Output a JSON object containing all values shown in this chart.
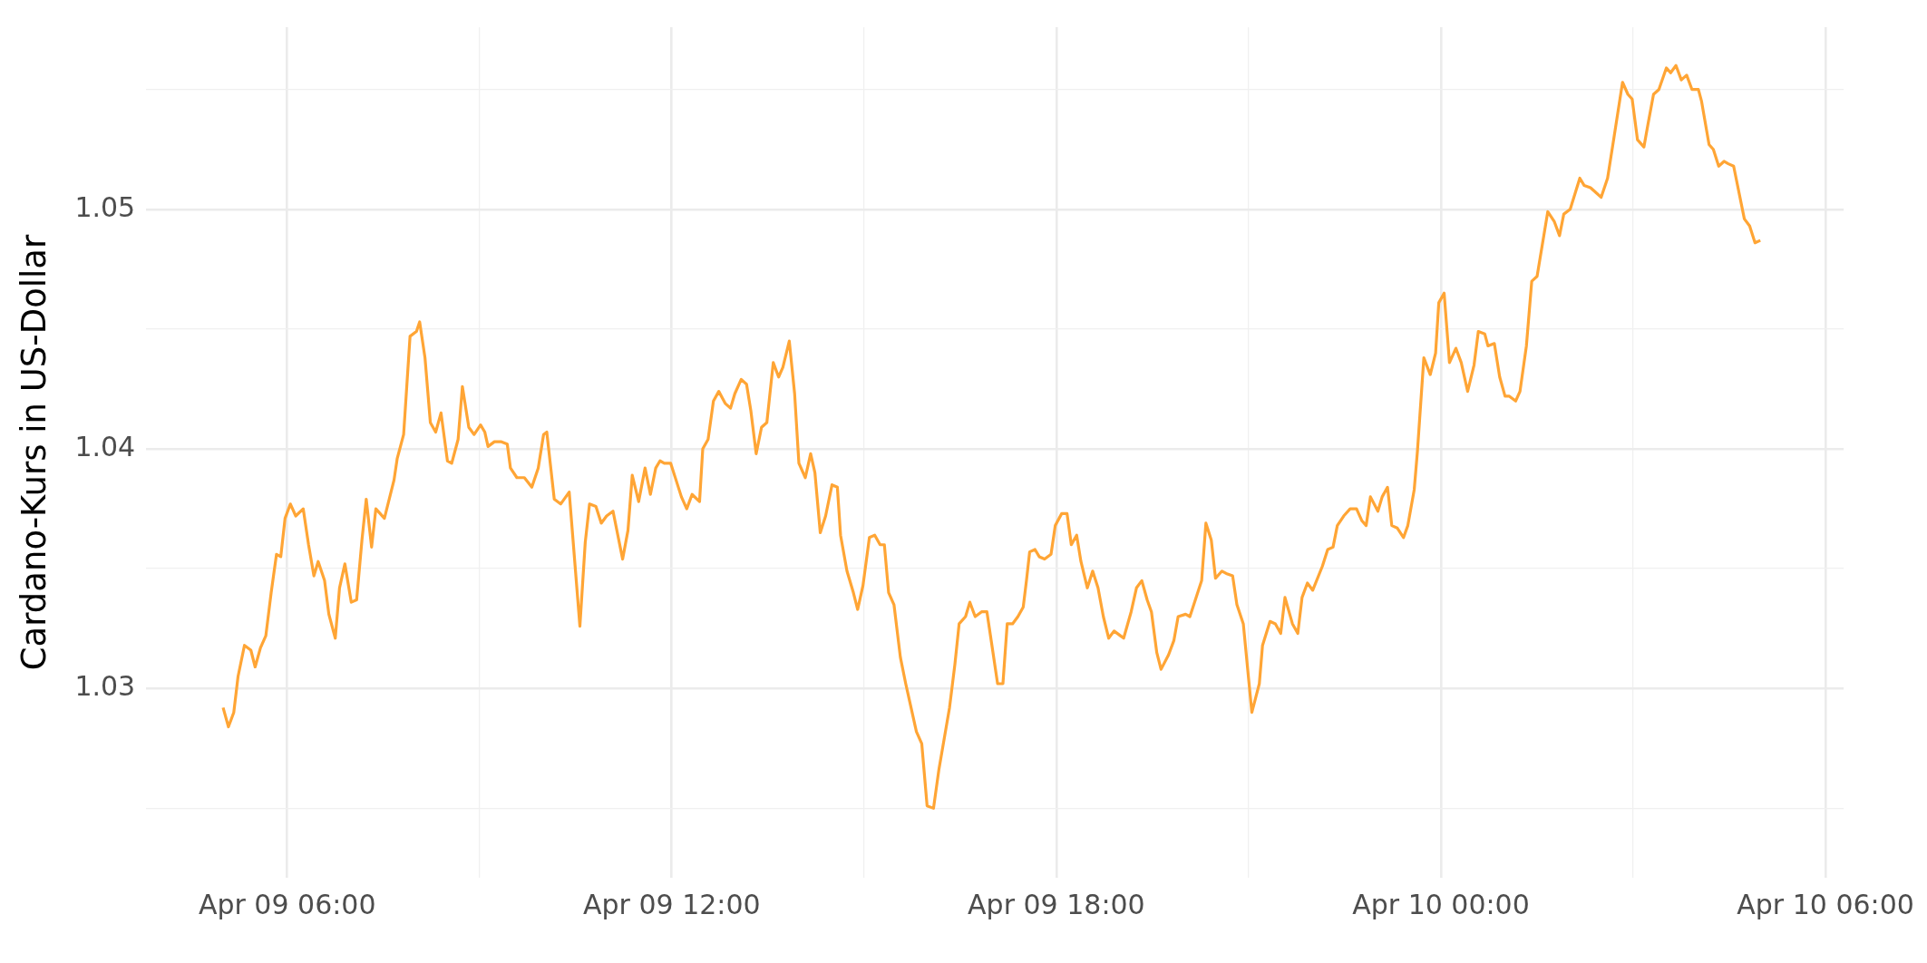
{
  "chart_data": {
    "type": "line",
    "ylabel": "Cardano-Kurs in US-Dollar",
    "color": "#ffa535",
    "grid": true,
    "xlim": [
      "--04-09T03:48",
      "--04-10T06:17"
    ],
    "ylim": [
      1.0221,
      1.0576
    ],
    "xticks": [
      {
        "value": "--04-09T06:00",
        "label": "Apr 09 06:00"
      },
      {
        "value": "--04-09T09:00",
        "label": null
      },
      {
        "value": "--04-09T12:00",
        "label": "Apr 09 12:00"
      },
      {
        "value": "--04-09T15:00",
        "label": null
      },
      {
        "value": "--04-09T18:00",
        "label": "Apr 09 18:00"
      },
      {
        "value": "--04-09T21:00",
        "label": null
      },
      {
        "value": "--04-10T00:00",
        "label": "Apr 10 00:00"
      },
      {
        "value": "--04-10T03:00",
        "label": null
      },
      {
        "value": "--04-10T06:00",
        "label": "Apr 10 06:00"
      }
    ],
    "yticks": [
      {
        "value": 1.025,
        "label": null
      },
      1.03,
      {
        "value": 1.035,
        "label": null
      },
      1.04,
      {
        "value": 1.045,
        "label": null
      },
      1.05,
      {
        "value": 1.055,
        "label": null
      }
    ],
    "x": [
      "--04-09T05:00",
      "--04-09T05:05",
      "--04-09T05:10",
      "--04-09T05:14",
      "--04-09T05:20",
      "--04-09T05:26",
      "--04-09T05:30",
      "--04-09T05:35",
      "--04-09T05:40",
      "--04-09T05:45",
      "--04-09T05:50",
      "--04-09T05:54",
      "--04-09T05:58",
      "--04-09T06:03",
      "--04-09T06:08",
      "--04-09T06:15",
      "--04-09T06:20",
      "--04-09T06:25",
      "--04-09T06:29",
      "--04-09T06:35",
      "--04-09T06:39",
      "--04-09T06:45",
      "--04-09T06:49",
      "--04-09T06:54",
      "--04-09T07:00",
      "--04-09T07:05",
      "--04-09T07:10",
      "--04-09T07:14",
      "--04-09T07:19",
      "--04-09T07:23",
      "--04-09T07:31",
      "--04-09T07:40",
      "--04-09T07:43",
      "--04-09T07:49",
      "--04-09T07:55",
      "--04-09T08:01",
      "--04-09T08:04",
      "--04-09T08:09",
      "--04-09T08:14",
      "--04-09T08:19",
      "--04-09T08:24",
      "--04-09T08:30",
      "--04-09T08:34",
      "--04-09T08:40",
      "--04-09T08:44",
      "--04-09T08:50",
      "--04-09T08:55",
      "--04-09T09:01",
      "--04-09T09:05",
      "--04-09T09:08",
      "--04-09T09:14",
      "--04-09T09:20",
      "--04-09T09:26",
      "--04-09T09:29",
      "--04-09T09:35",
      "--04-09T09:42",
      "--04-09T09:49",
      "--04-09T09:55",
      "--04-09T10:00",
      "--04-09T10:03",
      "--04-09T10:10",
      "--04-09T10:16",
      "--04-09T10:24",
      "--04-09T10:34",
      "--04-09T10:39",
      "--04-09T10:43",
      "--04-09T10:49",
      "--04-09T10:54",
      "--04-09T10:59",
      "--04-09T11:05",
      "--04-09T11:14",
      "--04-09T11:19",
      "--04-09T11:23",
      "--04-09T11:29",
      "--04-09T11:35",
      "--04-09T11:40",
      "--04-09T11:45",
      "--04-09T11:49",
      "--04-09T11:53",
      "--04-09T11:59",
      "--04-09T12:04",
      "--04-09T12:09",
      "--04-09T12:14",
      "--04-09T12:19",
      "--04-09T12:26",
      "--04-09T12:29",
      "--04-09T12:34",
      "--04-09T12:39",
      "--04-09T12:44",
      "--04-09T12:50",
      "--04-09T12:55",
      "--04-09T12:59",
      "--04-09T13:05",
      "--04-09T13:10",
      "--04-09T13:14",
      "--04-09T13:19",
      "--04-09T13:24",
      "--04-09T13:29",
      "--04-09T13:35",
      "--04-09T13:40",
      "--04-09T13:44",
      "--04-09T13:50",
      "--04-09T13:55",
      "--04-09T13:59",
      "--04-09T14:05",
      "--04-09T14:10",
      "--04-09T14:14",
      "--04-09T14:19",
      "--04-09T14:24",
      "--04-09T14:30",
      "--04-09T14:35",
      "--04-09T14:38",
      "--04-09T14:44",
      "--04-09T14:50",
      "--04-09T14:54",
      "--04-09T14:59",
      "--04-09T15:05",
      "--04-09T15:10",
      "--04-09T15:15",
      "--04-09T15:19",
      "--04-09T15:23",
      "--04-09T15:28",
      "--04-09T15:34",
      "--04-09T15:39",
      "--04-09T15:49",
      "--04-09T15:54",
      "--04-09T15:59",
      "--04-09T16:05",
      "--04-09T16:10",
      "--04-09T16:20",
      "--04-09T16:25",
      "--04-09T16:29",
      "--04-09T16:35",
      "--04-09T16:39",
      "--04-09T16:44",
      "--04-09T16:50",
      "--04-09T16:55",
      "--04-09T17:00",
      "--04-09T17:05",
      "--04-09T17:10",
      "--04-09T17:14",
      "--04-09T17:19",
      "--04-09T17:24",
      "--04-09T17:29",
      "--04-09T17:32",
      "--04-09T17:35",
      "--04-09T17:40",
      "--04-09T17:44",
      "--04-09T17:49",
      "--04-09T17:55",
      "--04-09T17:59",
      "--04-09T18:05",
      "--04-09T18:10",
      "--04-09T18:14",
      "--04-09T18:19",
      "--04-09T18:23",
      "--04-09T18:29",
      "--04-09T18:34",
      "--04-09T18:39",
      "--04-09T18:44",
      "--04-09T18:49",
      "--04-09T18:54",
      "--04-09T19:00",
      "--04-09T19:03",
      "--04-09T19:10",
      "--04-09T19:15",
      "--04-09T19:20",
      "--04-09T19:25",
      "--04-09T19:29",
      "--04-09T19:34",
      "--04-09T19:38",
      "--04-09T19:45",
      "--04-09T19:50",
      "--04-09T19:54",
      "--04-09T20:01",
      "--04-09T20:05",
      "--04-09T20:16",
      "--04-09T20:20",
      "--04-09T20:25",
      "--04-09T20:29",
      "--04-09T20:35",
      "--04-09T20:39",
      "--04-09T20:45",
      "--04-09T20:49",
      "--04-09T20:55",
      "--04-09T21:03",
      "--04-09T21:10",
      "--04-09T21:13",
      "--04-09T21:20",
      "--04-09T21:25",
      "--04-09T21:30",
      "--04-09T21:34",
      "--04-09T21:41",
      "--04-09T21:46",
      "--04-09T21:50",
      "--04-09T21:55",
      "--04-09T22:00",
      "--04-09T22:09",
      "--04-09T22:14",
      "--04-09T22:19",
      "--04-09T22:23",
      "--04-09T22:29",
      "--04-09T22:35",
      "--04-09T22:41",
      "--04-09T22:46",
      "--04-09T22:50",
      "--04-09T22:54",
      "--04-09T23:01",
      "--04-09T23:05",
      "--04-09T23:10",
      "--04-09T23:14",
      "--04-09T23:19",
      "--04-09T23:25",
      "--04-09T23:29",
      "--04-09T23:35",
      "--04-09T23:38",
      "--04-09T23:44",
      "--04-09T23:50",
      "--04-09T23:55",
      "--04-09T23:58",
      "--04-10T00:03",
      "--04-10T00:08",
      "--04-10T00:14",
      "--04-10T00:19",
      "--04-10T00:25",
      "--04-10T00:31",
      "--04-10T00:35",
      "--04-10T00:41",
      "--04-10T00:44",
      "--04-10T00:50",
      "--04-10T00:55",
      "--04-10T01:00",
      "--04-10T01:04",
      "--04-10T01:10",
      "--04-10T01:14",
      "--04-10T01:20",
      "--04-10T01:25",
      "--04-10T01:30",
      "--04-10T01:40",
      "--04-10T01:46",
      "--04-10T01:51",
      "--04-10T01:55",
      "--04-10T02:01",
      "--04-10T02:10",
      "--04-10T02:14",
      "--04-10T02:20",
      "--04-10T02:25",
      "--04-10T02:30",
      "--04-10T02:36",
      "--04-10T02:42",
      "--04-10T02:50",
      "--04-10T02:55",
      "--04-10T02:59",
      "--04-10T03:04",
      "--04-10T03:10",
      "--04-10T03:14",
      "--04-10T03:19",
      "--04-10T03:24",
      "--04-10T03:31",
      "--04-10T03:35",
      "--04-10T03:40",
      "--04-10T03:45",
      "--04-10T03:50",
      "--04-10T03:55",
      "--04-10T04:01",
      "--04-10T04:04",
      "--04-10T04:11",
      "--04-10T04:15",
      "--04-10T04:20",
      "--04-10T04:25",
      "--04-10T04:29",
      "--04-10T04:34",
      "--04-10T04:44",
      "--04-10T04:49",
      "--04-10T04:54",
      "--04-10T04:59"
    ],
    "values": [
      1.0292,
      1.0284,
      1.029,
      1.0305,
      1.0318,
      1.0316,
      1.0309,
      1.0317,
      1.0322,
      1.034,
      1.0356,
      1.0355,
      1.0371,
      1.0377,
      1.0372,
      1.0375,
      1.036,
      1.0347,
      1.0353,
      1.0345,
      1.0331,
      1.0321,
      1.0342,
      1.0352,
      1.0336,
      1.0337,
      1.0362,
      1.0379,
      1.0359,
      1.0375,
      1.0371,
      1.0387,
      1.0396,
      1.0406,
      1.0447,
      1.0449,
      1.0453,
      1.0438,
      1.0411,
      1.0407,
      1.0415,
      1.0395,
      1.0394,
      1.0404,
      1.0426,
      1.0409,
      1.0406,
      1.041,
      1.0407,
      1.0401,
      1.0403,
      1.0403,
      1.0402,
      1.0392,
      1.0388,
      1.0388,
      1.0384,
      1.0392,
      1.0406,
      1.0407,
      1.0379,
      1.0377,
      1.0382,
      1.0326,
      1.0361,
      1.0377,
      1.0376,
      1.0369,
      1.0372,
      1.0374,
      1.0354,
      1.0366,
      1.0389,
      1.0378,
      1.0392,
      1.0381,
      1.0392,
      1.0395,
      1.0394,
      1.0394,
      1.0387,
      1.038,
      1.0375,
      1.0381,
      1.0378,
      1.04,
      1.0404,
      1.042,
      1.0424,
      1.0419,
      1.0417,
      1.0423,
      1.0429,
      1.0427,
      1.0416,
      1.0398,
      1.0409,
      1.0411,
      1.0436,
      1.043,
      1.0434,
      1.0445,
      1.0423,
      1.0394,
      1.0388,
      1.0398,
      1.039,
      1.0365,
      1.0372,
      1.0385,
      1.0384,
      1.0364,
      1.0349,
      1.034,
      1.0333,
      1.0343,
      1.0363,
      1.0364,
      1.036,
      1.036,
      1.034,
      1.0335,
      1.0313,
      1.0302,
      1.0282,
      1.0277,
      1.0251,
      1.025,
      1.0266,
      1.0292,
      1.031,
      1.0327,
      1.033,
      1.0336,
      1.033,
      1.0332,
      1.0332,
      1.0317,
      1.0302,
      1.0302,
      1.0327,
      1.0327,
      1.033,
      1.0334,
      1.0345,
      1.0357,
      1.0358,
      1.0355,
      1.0354,
      1.0356,
      1.0368,
      1.0373,
      1.0373,
      1.036,
      1.0364,
      1.0353,
      1.0342,
      1.0349,
      1.0342,
      1.033,
      1.0321,
      1.0324,
      1.0322,
      1.0321,
      1.0332,
      1.0342,
      1.0345,
      1.0337,
      1.0332,
      1.0315,
      1.0308,
      1.0314,
      1.032,
      1.033,
      1.0331,
      1.033,
      1.0345,
      1.0369,
      1.0362,
      1.0346,
      1.0349,
      1.0348,
      1.0347,
      1.0335,
      1.0327,
      1.029,
      1.0302,
      1.0318,
      1.0328,
      1.0327,
      1.0323,
      1.0338,
      1.0327,
      1.0323,
      1.0338,
      1.0344,
      1.0341,
      1.0351,
      1.0358,
      1.0359,
      1.0368,
      1.0372,
      1.0375,
      1.0375,
      1.037,
      1.0368,
      1.038,
      1.0374,
      1.038,
      1.0384,
      1.0368,
      1.0367,
      1.0363,
      1.0368,
      1.0383,
      1.0399,
      1.0438,
      1.0431,
      1.044,
      1.0461,
      1.0465,
      1.0436,
      1.0442,
      1.0436,
      1.0424,
      1.0435,
      1.0449,
      1.0448,
      1.0443,
      1.0444,
      1.043,
      1.0422,
      1.0422,
      1.042,
      1.0424,
      1.0443,
      1.047,
      1.0472,
      1.0499,
      1.0495,
      1.0489,
      1.0498,
      1.05,
      1.0513,
      1.051,
      1.0509,
      1.0507,
      1.0505,
      1.0513,
      1.053,
      1.0553,
      1.0548,
      1.0546,
      1.0529,
      1.0526,
      1.0536,
      1.0548,
      1.055,
      1.0559,
      1.0557,
      1.056,
      1.0554,
      1.0556,
      1.055,
      1.055,
      1.0545,
      1.0527,
      1.0525,
      1.0518,
      1.052,
      1.0519,
      1.0518,
      1.0496,
      1.0493,
      1.0486,
      1.0487
    ]
  }
}
